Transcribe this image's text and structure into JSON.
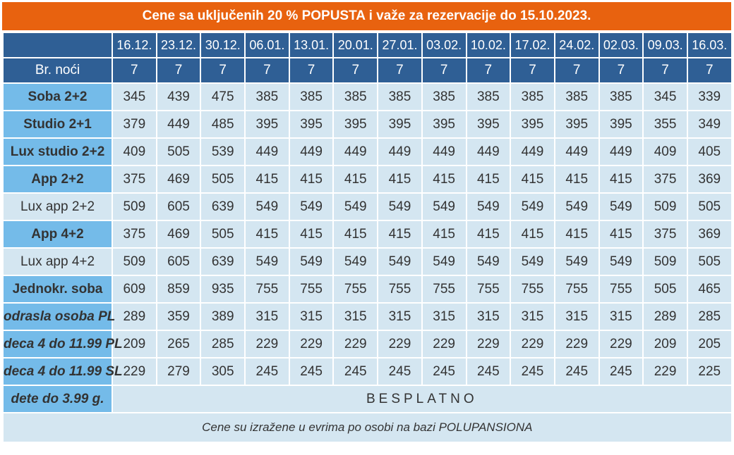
{
  "title": "Cene sa uključenih 20 % POPUSTA i važe za rezervacije  do 15.10.2023.",
  "dates": [
    "16.12.",
    "23.12.",
    "30.12.",
    "06.01.",
    "13.01.",
    "20.01.",
    "27.01.",
    "03.02.",
    "10.02.",
    "17.02.",
    "24.02.",
    "02.03.",
    "09.03.",
    "16.03."
  ],
  "nights_label": "Br. noći",
  "nights": [
    "7",
    "7",
    "7",
    "7",
    "7",
    "7",
    "7",
    "7",
    "7",
    "7",
    "7",
    "7",
    "7",
    "7"
  ],
  "rows": [
    {
      "label": "Soba 2+2",
      "style": "bold",
      "values": [
        "345",
        "439",
        "475",
        "385",
        "385",
        "385",
        "385",
        "385",
        "385",
        "385",
        "385",
        "385",
        "345",
        "339"
      ]
    },
    {
      "label": "Studio 2+1",
      "style": "bold",
      "values": [
        "379",
        "449",
        "485",
        "395",
        "395",
        "395",
        "395",
        "395",
        "395",
        "395",
        "395",
        "395",
        "355",
        "349"
      ]
    },
    {
      "label": "Lux studio 2+2",
      "style": "bold",
      "values": [
        "409",
        "505",
        "539",
        "449",
        "449",
        "449",
        "449",
        "449",
        "449",
        "449",
        "449",
        "449",
        "409",
        "405"
      ]
    },
    {
      "label": "App 2+2",
      "style": "bold",
      "values": [
        "375",
        "469",
        "505",
        "415",
        "415",
        "415",
        "415",
        "415",
        "415",
        "415",
        "415",
        "415",
        "375",
        "369"
      ]
    },
    {
      "label": "Lux app 2+2",
      "style": "plain",
      "values": [
        "509",
        "605",
        "639",
        "549",
        "549",
        "549",
        "549",
        "549",
        "549",
        "549",
        "549",
        "549",
        "509",
        "505"
      ]
    },
    {
      "label": "App 4+2",
      "style": "bold",
      "values": [
        "375",
        "469",
        "505",
        "415",
        "415",
        "415",
        "415",
        "415",
        "415",
        "415",
        "415",
        "415",
        "375",
        "369"
      ]
    },
    {
      "label": "Lux app 4+2",
      "style": "plain",
      "values": [
        "509",
        "605",
        "639",
        "549",
        "549",
        "549",
        "549",
        "549",
        "549",
        "549",
        "549",
        "549",
        "509",
        "505"
      ]
    },
    {
      "label": "Jednokr. soba",
      "style": "bold",
      "values": [
        "609",
        "859",
        "935",
        "755",
        "755",
        "755",
        "755",
        "755",
        "755",
        "755",
        "755",
        "755",
        "505",
        "465"
      ]
    },
    {
      "label": "odrasla osoba PL",
      "style": "small",
      "values": [
        "289",
        "359",
        "389",
        "315",
        "315",
        "315",
        "315",
        "315",
        "315",
        "315",
        "315",
        "315",
        "289",
        "285"
      ]
    },
    {
      "label": "deca 4 do 11.99 PL",
      "style": "small",
      "values": [
        "209",
        "265",
        "285",
        "229",
        "229",
        "229",
        "229",
        "229",
        "229",
        "229",
        "229",
        "229",
        "209",
        "205"
      ]
    },
    {
      "label": "deca 4 do 11.99 SL",
      "style": "small",
      "values": [
        "229",
        "279",
        "305",
        "245",
        "245",
        "245",
        "245",
        "245",
        "245",
        "245",
        "245",
        "245",
        "229",
        "225"
      ]
    }
  ],
  "free_row": {
    "label": "dete do 3.99 g.",
    "text": "BESPLATNO"
  },
  "footer": "Cene su izražene u evrima po osobi na bazi POLUPANSIONA",
  "colors": {
    "title_bg": "#e8620f",
    "header_bg": "#2f5f95",
    "label_bg": "#74bbe9",
    "cell_bg": "#d4e6f1"
  }
}
